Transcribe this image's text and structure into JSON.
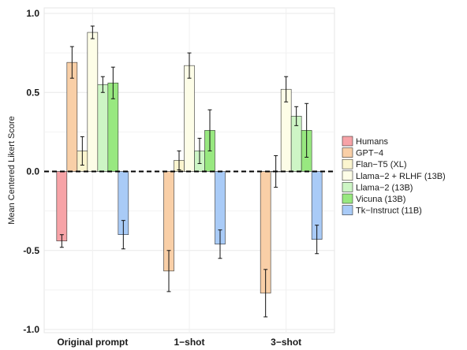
{
  "chart_data": {
    "type": "bar",
    "ylabel": "Mean Centered Likert Score",
    "xlabel": "",
    "ylim": [
      -1.0,
      1.0
    ],
    "yticks": [
      -1.0,
      -0.5,
      0.0,
      0.5,
      1.0
    ],
    "ytick_labels": [
      "-1.0",
      "-0.5",
      "0.0",
      "0.5",
      "1.0"
    ],
    "grid": true,
    "legend_position": "right",
    "zero_line": "dashed",
    "categories": [
      "Original prompt",
      "1−shot",
      "3−shot"
    ],
    "series": [
      {
        "name": "Humans",
        "color": "#F7A3A7",
        "values": [
          -0.44,
          null,
          null
        ],
        "err": [
          0.04,
          null,
          null
        ]
      },
      {
        "name": "GPT−4",
        "color": "#F9CFA7",
        "values": [
          0.69,
          -0.63,
          -0.77
        ],
        "err": [
          0.1,
          0.13,
          0.15
        ]
      },
      {
        "name": "Flan−T5 (XL)",
        "color": "#FBF5CF",
        "values": [
          0.13,
          0.07,
          0.0
        ],
        "err": [
          0.09,
          0.06,
          0.1
        ]
      },
      {
        "name": "Llama−2 + RLHF (13B)",
        "color": "#FDFDE7",
        "values": [
          0.88,
          0.67,
          0.52
        ],
        "err": [
          0.04,
          0.08,
          0.08
        ]
      },
      {
        "name": "Llama−2 (13B)",
        "color": "#CDF5C5",
        "values": [
          0.55,
          0.13,
          0.35
        ],
        "err": [
          0.05,
          0.08,
          0.06
        ]
      },
      {
        "name": "Vicuna (13B)",
        "color": "#98E880",
        "values": [
          0.56,
          0.26,
          0.26
        ],
        "err": [
          0.1,
          0.13,
          0.17
        ]
      },
      {
        "name": "Tk−Instruct (11B)",
        "color": "#A9CBF7",
        "values": [
          -0.4,
          -0.46,
          -0.43
        ],
        "err": [
          0.09,
          0.09,
          0.09
        ]
      }
    ]
  }
}
